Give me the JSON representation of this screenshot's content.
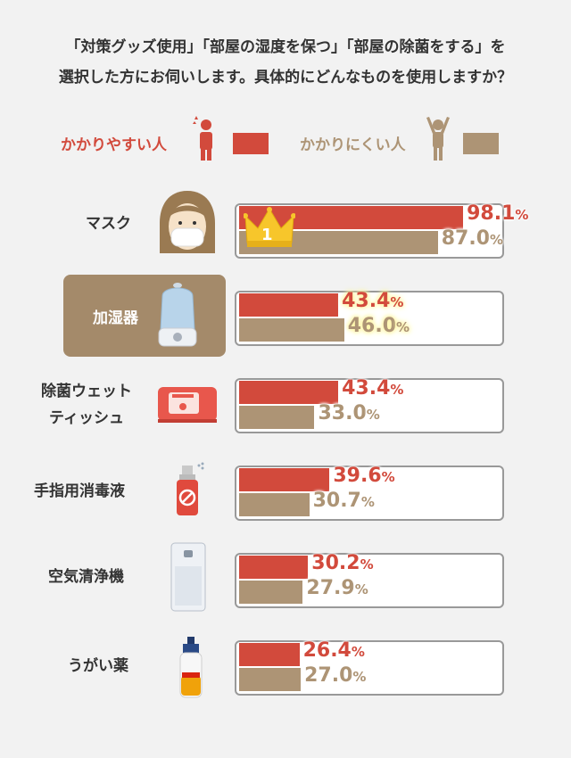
{
  "header": {
    "line1": "「対策グッズ使用」「部屋の湿度を保つ」「部屋の除菌をする」を",
    "line2": "選択した方にお伺いします。具体的にどんなものを使用しますか？"
  },
  "legend": {
    "easy_label": "かかりやすい人",
    "hard_label": "かかりにくい人",
    "easy_color": "#d24a3c",
    "hard_color": "#ad9475"
  },
  "highlight_color": "#a48a6a",
  "chart_data": {
    "type": "bar",
    "orientation": "horizontal",
    "unit": "%",
    "xlim": [
      0,
      100
    ],
    "categories": [
      "マスク",
      "加湿器",
      "除菌ウェットティッシュ",
      "手指用消毒液",
      "空気清浄機",
      "うがい薬"
    ],
    "category_display": [
      [
        "マスク"
      ],
      [
        "加湿器"
      ],
      [
        "除菌ウェット",
        "ティッシュ"
      ],
      [
        "手指用消毒液"
      ],
      [
        "空気清浄機"
      ],
      [
        "うがい薬"
      ]
    ],
    "series": [
      {
        "name": "かかりやすい人",
        "values": [
          98.1,
          43.4,
          43.4,
          39.6,
          30.2,
          26.4
        ],
        "labels": [
          "98.1",
          "43.4",
          "43.4",
          "39.6",
          "30.2",
          "26.4"
        ]
      },
      {
        "name": "かかりにくい人",
        "values": [
          87.0,
          46.0,
          33.0,
          30.7,
          27.9,
          27.0
        ],
        "labels": [
          "87.0",
          "46.0",
          "33.0",
          "30.7",
          "27.9",
          "27.0"
        ]
      }
    ],
    "rank_badge": "1",
    "icons": [
      "mask-woman-icon",
      "humidifier-icon",
      "wet-tissue-icon",
      "sanitizer-spray-icon",
      "air-purifier-icon",
      "mouthwash-bottle-icon"
    ]
  }
}
